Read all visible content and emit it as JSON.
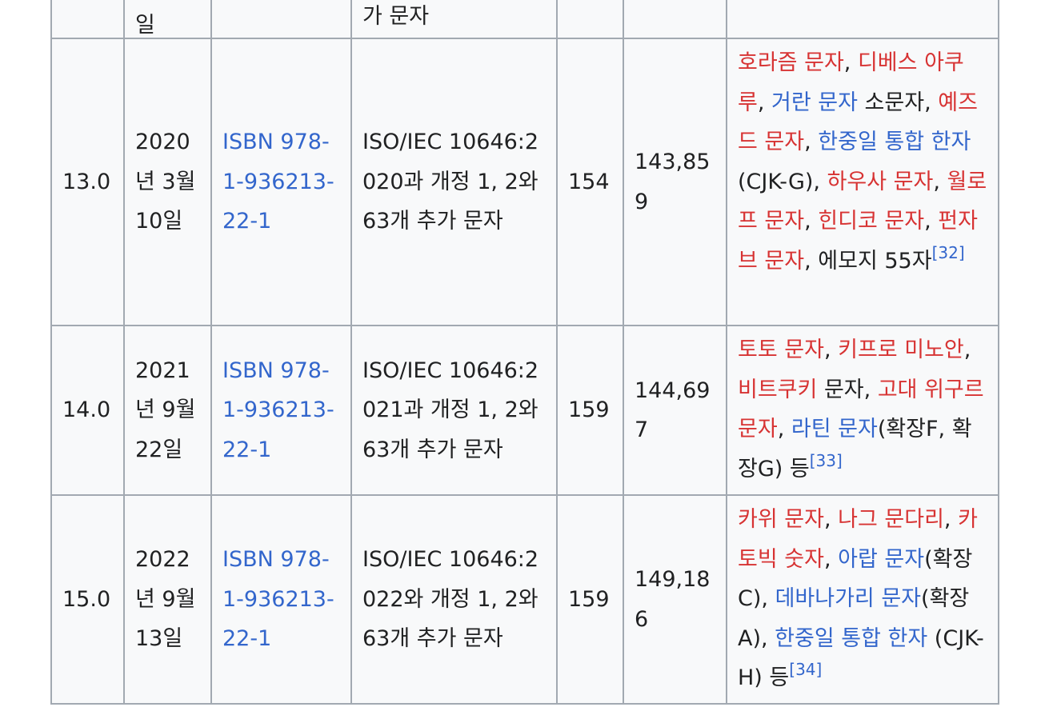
{
  "top_row": {
    "date": "일",
    "iso": "가 문자"
  },
  "rows": [
    {
      "version": "13.0",
      "date": "2020년 3월 10일",
      "isbn": "ISBN 978-1-936213-22-1",
      "iso": "ISO/IEC 10646:2020과 개정 1, 2와 63개 추가 문자",
      "scripts": "154",
      "chars": "143,859",
      "desc": [
        {
          "t": "호라즘 문자",
          "c": "red"
        },
        {
          "t": ", "
        },
        {
          "t": "디베스 아쿠루",
          "c": "red"
        },
        {
          "t": ", "
        },
        {
          "t": "거란 문자",
          "c": "blue"
        },
        {
          "t": " 소문자, "
        },
        {
          "t": "예즈드 문자",
          "c": "red"
        },
        {
          "t": ", "
        },
        {
          "t": "한중일 통합 한자",
          "c": "blue"
        },
        {
          "t": "(CJK-G), "
        },
        {
          "t": "하우사 문자",
          "c": "red"
        },
        {
          "t": ", "
        },
        {
          "t": "월로프 문자",
          "c": "red"
        },
        {
          "t": ", "
        },
        {
          "t": "힌디코 문자",
          "c": "red"
        },
        {
          "t": ", "
        },
        {
          "t": "펀자브 문자",
          "c": "red"
        },
        {
          "t": ", 에모지 55자"
        }
      ],
      "ref": "[32]"
    },
    {
      "version": "14.0",
      "date": "2021년 9월 22일",
      "isbn": "ISBN 978-1-936213-22-1",
      "iso": "ISO/IEC 10646:2021과 개정 1, 2와 63개 추가 문자",
      "scripts": "159",
      "chars": "144,697",
      "desc": [
        {
          "t": "토토 문자",
          "c": "red"
        },
        {
          "t": ", "
        },
        {
          "t": "키프로 미노안",
          "c": "red"
        },
        {
          "t": ", "
        },
        {
          "t": "비트쿠키",
          "c": "red"
        },
        {
          "t": " 문자, "
        },
        {
          "t": "고대 위구르 문자",
          "c": "red"
        },
        {
          "t": ", "
        },
        {
          "t": "라틴 문자",
          "c": "blue"
        },
        {
          "t": "(확장F, 확장G) 등"
        }
      ],
      "ref": "[33]"
    },
    {
      "version": "15.0",
      "date": "2022년 9월 13일",
      "isbn": "ISBN 978-1-936213-22-1",
      "iso": "ISO/IEC 10646:2022와 개정 1, 2와 63개 추가 문자",
      "scripts": "159",
      "chars": "149,186",
      "desc": [
        {
          "t": "카위 문자",
          "c": "red"
        },
        {
          "t": ", "
        },
        {
          "t": "나그 문다리",
          "c": "red"
        },
        {
          "t": ", "
        },
        {
          "t": "카토빅 숫자",
          "c": "red"
        },
        {
          "t": ", "
        },
        {
          "t": "아랍 문자",
          "c": "blue"
        },
        {
          "t": "(확장C), "
        },
        {
          "t": "데바나가리 문자",
          "c": "blue"
        },
        {
          "t": "(확장A), "
        },
        {
          "t": "한중일 통합 한자",
          "c": "blue"
        },
        {
          "t": " (CJK-H) 등"
        }
      ],
      "ref": "[34]"
    }
  ]
}
